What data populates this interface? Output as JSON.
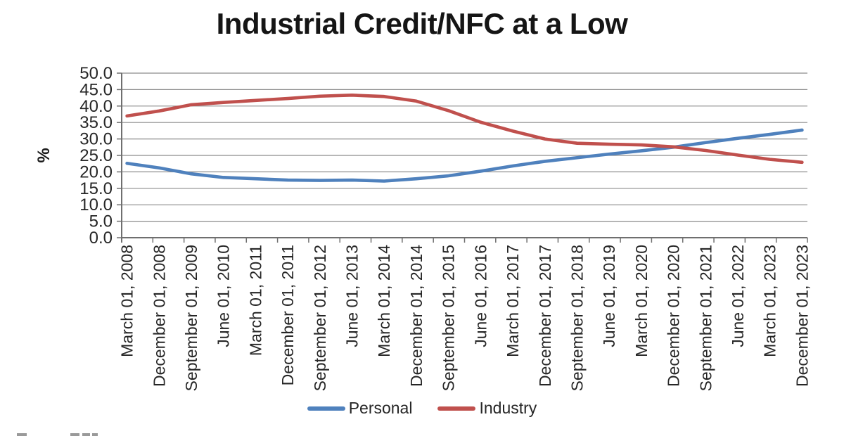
{
  "chart_data": {
    "type": "line",
    "title": "Industrial Credit/NFC at a Low",
    "xlabel": "",
    "ylabel": "%",
    "ylim": [
      0,
      50
    ],
    "ytick_step": 5,
    "ytick_labels": [
      "0.0",
      "5.0",
      "10.0",
      "15.0",
      "20.0",
      "25.0",
      "30.0",
      "35.0",
      "40.0",
      "45.0",
      "50.0"
    ],
    "grid": "horizontal",
    "legend_position": "bottom",
    "categories": [
      "March 01, 2008",
      "December 01, 2008",
      "September 01, 2009",
      "June 01, 2010",
      "March 01, 2011",
      "December 01, 2011",
      "September 01, 2012",
      "June 01, 2013",
      "March 01, 2014",
      "December 01, 2014",
      "September 01, 2015",
      "June 01, 2016",
      "March 01, 2017",
      "December 01, 2017",
      "September 01, 2018",
      "June 01, 2019",
      "March 01, 2020",
      "December 01, 2020",
      "September 01, 2021",
      "June 01, 2022",
      "March 01, 2023",
      "December 01, 2023"
    ],
    "series": [
      {
        "name": "Personal",
        "color": "#4F81BD",
        "values": [
          22.6,
          21.2,
          19.4,
          18.3,
          17.9,
          17.5,
          17.4,
          17.5,
          17.2,
          17.9,
          18.8,
          20.2,
          21.8,
          23.2,
          24.3,
          25.4,
          26.4,
          27.5,
          28.9,
          30.2,
          31.4,
          32.7
        ]
      },
      {
        "name": "Industry",
        "color": "#C0504D",
        "values": [
          37.0,
          38.5,
          40.4,
          41.1,
          41.7,
          42.3,
          43.0,
          43.3,
          42.9,
          41.5,
          38.6,
          35.1,
          32.4,
          30.0,
          28.7,
          28.4,
          28.2,
          27.6,
          26.5,
          25.1,
          23.8,
          22.9
        ]
      }
    ]
  },
  "axis_colors": {
    "gridline": "#8c8c8c",
    "axis_line": "#6f6f6f",
    "tick_label": "#262626"
  }
}
